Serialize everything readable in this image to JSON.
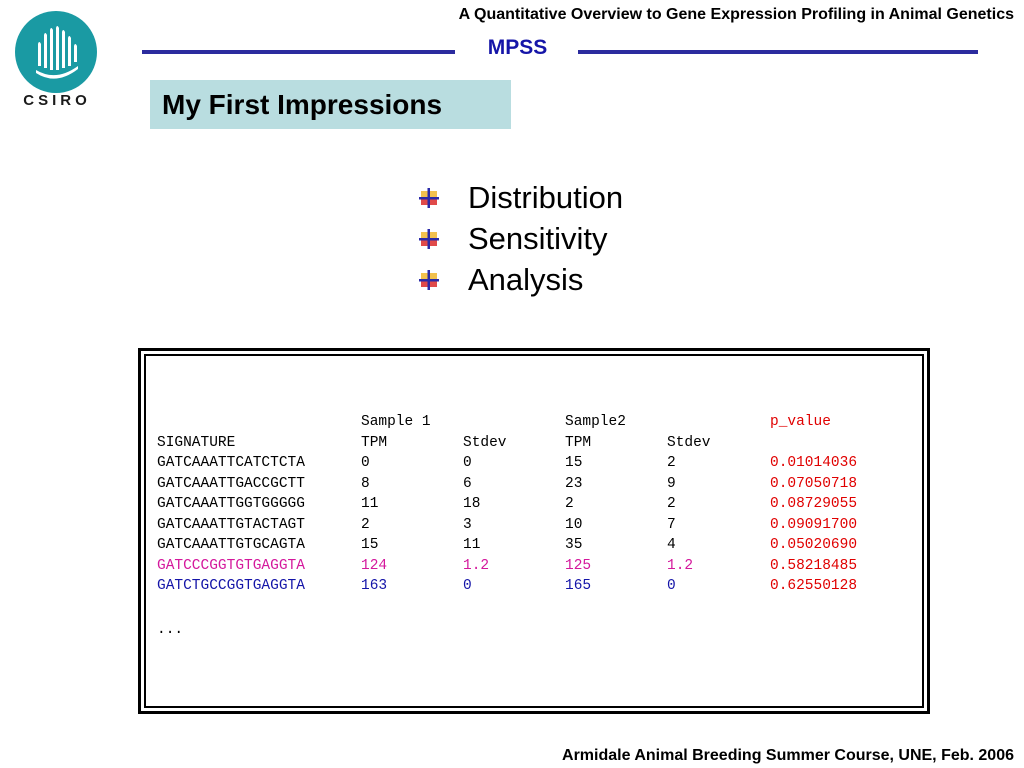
{
  "header": {
    "course_title": "A Quantitative Overview to Gene Expression Profiling in Animal Genetics",
    "section_title": "MPSS",
    "logo_text": "CSIRO"
  },
  "slide": {
    "heading": "My First Impressions",
    "bullets": [
      {
        "text": "Distribution",
        "icon": "bullet-icon"
      },
      {
        "text": "Sensitivity",
        "icon": "bullet-icon"
      },
      {
        "text": "Analysis",
        "icon": "bullet-icon"
      }
    ]
  },
  "table": {
    "group_headers": [
      "",
      "Sample 1",
      "",
      "Sample2",
      "",
      "p_value"
    ],
    "column_headers": [
      "SIGNATURE",
      "TPM",
      "Stdev",
      "TPM",
      "Stdev",
      ""
    ],
    "rows": [
      [
        "GATCAAATTCATCTCTA",
        "0",
        "0",
        "15",
        "2",
        "0.01014036"
      ],
      [
        "GATCAAATTGACCGCTT",
        "8",
        "6",
        "23",
        "9",
        "0.07050718"
      ],
      [
        "GATCAAATTGGTGGGGG",
        "11",
        "18",
        "2",
        "2",
        "0.08729055"
      ],
      [
        "GATCAAATTGTACTAGT",
        "2",
        "3",
        "10",
        "7",
        "0.09091700"
      ],
      [
        "GATCAAATTGTGCAGTA",
        "15",
        "11",
        "35",
        "4",
        "0.05020690"
      ],
      [
        "GATCCCGGTGTGAGGTA",
        "124",
        "1.2",
        "125",
        "1.2",
        "0.58218485"
      ],
      [
        "GATCTGCCGGTGAGGTA",
        "163",
        "0",
        "165",
        "0",
        "0.62550128"
      ]
    ],
    "ellipsis": "...",
    "colors": {
      "p_value": "#e00000",
      "highlight_row_1": "#d4189c",
      "highlight_row_2": "#1414a8"
    }
  },
  "footer": {
    "text": "Armidale Animal Breeding Summer Course, UNE, Feb. 2006"
  },
  "colors": {
    "accent_line": "#2b2b9e",
    "section_title": "#1515a8",
    "heading_background": "#b9dde0",
    "logo_teal": "#1a9aa3"
  }
}
